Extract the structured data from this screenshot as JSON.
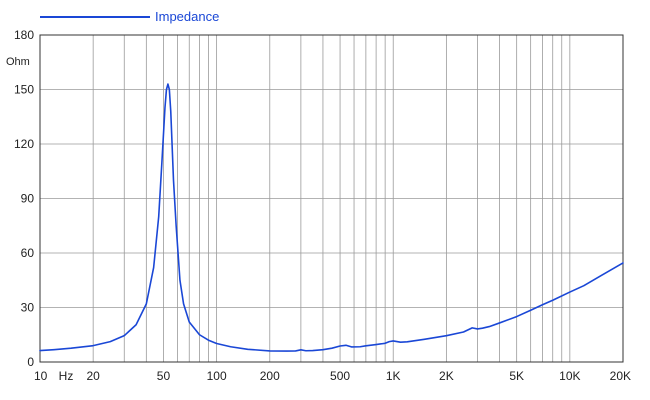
{
  "colors": {
    "series": "#1a47d6",
    "grid": "#9a9a9a",
    "axis": "#333333",
    "text": "#222222"
  },
  "chart_data": {
    "type": "line",
    "title": "",
    "xlabel": "Hz",
    "ylabel": "Ohm",
    "x_scale": "log",
    "xlim": [
      10,
      20000
    ],
    "ylim": [
      0,
      180
    ],
    "grid": true,
    "legend_position": "top-left",
    "x_tick_labels": [
      {
        "value": 10,
        "label": "10"
      },
      {
        "value": 20,
        "label": "20"
      },
      {
        "value": 50,
        "label": "50"
      },
      {
        "value": 100,
        "label": "100"
      },
      {
        "value": 200,
        "label": "200"
      },
      {
        "value": 500,
        "label": "500"
      },
      {
        "value": 1000,
        "label": "1K"
      },
      {
        "value": 2000,
        "label": "2K"
      },
      {
        "value": 5000,
        "label": "5K"
      },
      {
        "value": 10000,
        "label": "10K"
      },
      {
        "value": 20000,
        "label": "20K"
      }
    ],
    "y_ticks": [
      0,
      30,
      60,
      90,
      120,
      150,
      180
    ],
    "series": [
      {
        "name": "Impedance",
        "points": [
          [
            10,
            6.3
          ],
          [
            12,
            6.8
          ],
          [
            15,
            7.6
          ],
          [
            20,
            9.0
          ],
          [
            25,
            11.2
          ],
          [
            30,
            14.5
          ],
          [
            35,
            20.5
          ],
          [
            40,
            32
          ],
          [
            44,
            52
          ],
          [
            47,
            80
          ],
          [
            49,
            110
          ],
          [
            51,
            140
          ],
          [
            52,
            150
          ],
          [
            53,
            153
          ],
          [
            54,
            150
          ],
          [
            55,
            138
          ],
          [
            57,
            100
          ],
          [
            59,
            75
          ],
          [
            62,
            45
          ],
          [
            65,
            32
          ],
          [
            70,
            22
          ],
          [
            80,
            15
          ],
          [
            90,
            12
          ],
          [
            100,
            10.2
          ],
          [
            120,
            8.4
          ],
          [
            150,
            7.0
          ],
          [
            200,
            6.1
          ],
          [
            250,
            6.0
          ],
          [
            280,
            6.1
          ],
          [
            300,
            6.7
          ],
          [
            320,
            6.2
          ],
          [
            350,
            6.3
          ],
          [
            400,
            6.8
          ],
          [
            450,
            7.6
          ],
          [
            500,
            8.8
          ],
          [
            540,
            9.2
          ],
          [
            580,
            8.3
          ],
          [
            650,
            8.4
          ],
          [
            700,
            8.9
          ],
          [
            800,
            9.6
          ],
          [
            900,
            10.3
          ],
          [
            950,
            11.2
          ],
          [
            1000,
            11.6
          ],
          [
            1100,
            10.9
          ],
          [
            1200,
            11.1
          ],
          [
            1500,
            12.5
          ],
          [
            2000,
            14.5
          ],
          [
            2500,
            16.5
          ],
          [
            2800,
            18.8
          ],
          [
            3000,
            18.2
          ],
          [
            3200,
            18.6
          ],
          [
            3500,
            19.5
          ],
          [
            4000,
            21.5
          ],
          [
            5000,
            25
          ],
          [
            6000,
            28.5
          ],
          [
            7000,
            31.5
          ],
          [
            8000,
            34
          ],
          [
            10000,
            38.5
          ],
          [
            12000,
            42
          ],
          [
            15000,
            47.5
          ],
          [
            20000,
            54.5
          ]
        ]
      }
    ]
  }
}
